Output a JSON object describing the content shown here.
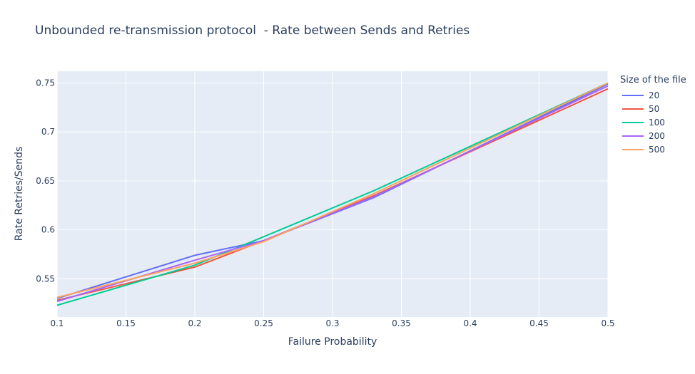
{
  "chart_data": {
    "type": "line",
    "title": "Unbounded re-transmission protocol  - Rate between Sends and Retries",
    "xlabel": "Failure Probability",
    "ylabel": "Rate Retries/Sends",
    "xlim": [
      0.1,
      0.5
    ],
    "ylim": [
      0.511,
      0.762
    ],
    "xticks": [
      "0.1",
      "0.15",
      "0.2",
      "0.25",
      "0.3",
      "0.35",
      "0.4",
      "0.45",
      "0.5"
    ],
    "yticks": [
      "0.55",
      "0.6",
      "0.65",
      "0.7",
      "0.75"
    ],
    "grid": true,
    "legend_title": "Size of the file",
    "legend_position": "top-right",
    "x": [
      0.1,
      0.2,
      0.25,
      0.33,
      0.5
    ],
    "series": [
      {
        "name": "20",
        "color": "#636efa",
        "values": [
          0.53,
          0.574,
          0.589,
          0.633,
          0.749
        ]
      },
      {
        "name": "50",
        "color": "#ef553b",
        "values": [
          0.528,
          0.562,
          0.589,
          0.635,
          0.744
        ]
      },
      {
        "name": "100",
        "color": "#00cc96",
        "values": [
          0.523,
          0.564,
          0.593,
          0.64,
          0.75
        ]
      },
      {
        "name": "200",
        "color": "#ab63fa",
        "values": [
          0.527,
          0.569,
          0.589,
          0.634,
          0.747
        ]
      },
      {
        "name": "500",
        "color": "#ffa15a",
        "values": [
          0.531,
          0.566,
          0.588,
          0.637,
          0.75
        ]
      }
    ]
  }
}
